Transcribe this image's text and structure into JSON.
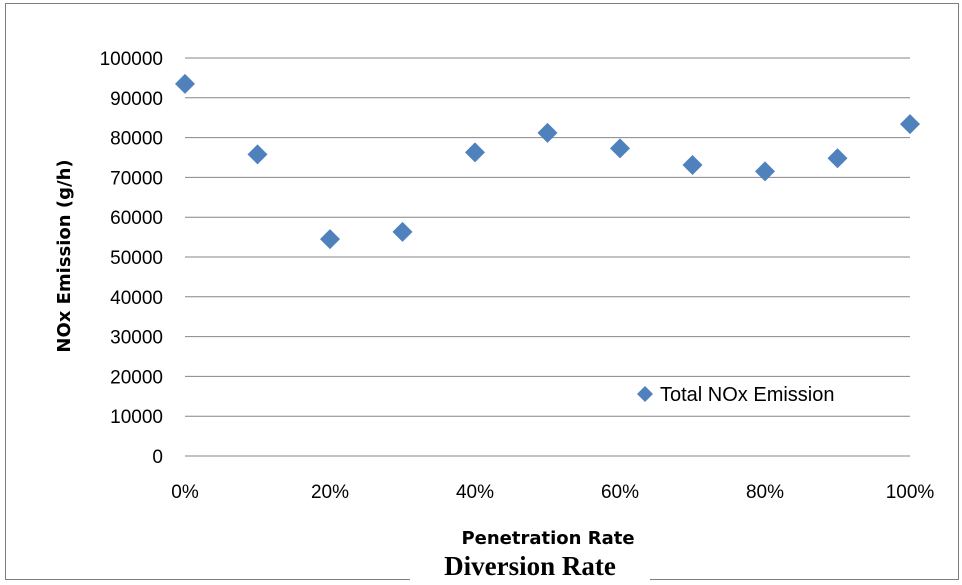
{
  "chart_data": {
    "type": "scatter",
    "x": [
      "0%",
      "10%",
      "20%",
      "30%",
      "40%",
      "50%",
      "60%",
      "70%",
      "80%",
      "90%",
      "100%"
    ],
    "x_values": [
      0,
      10,
      20,
      30,
      40,
      50,
      60,
      70,
      80,
      90,
      100
    ],
    "series": [
      {
        "name": "Total NOx Emission",
        "values": [
          93500,
          75800,
          54500,
          56300,
          76300,
          81200,
          77300,
          73100,
          71500,
          74800,
          83400
        ],
        "color": "#4f81bd"
      }
    ],
    "xticks": [
      "0%",
      "20%",
      "40%",
      "60%",
      "80%",
      "100%"
    ],
    "yticks": [
      "0",
      "10000",
      "20000",
      "30000",
      "40000",
      "50000",
      "60000",
      "70000",
      "80000",
      "90000",
      "100000"
    ],
    "xlabel": "Penetration Rate",
    "ylabel": "NOx Emission (g/h)",
    "xlim": [
      0,
      100
    ],
    "ylim": [
      0,
      100000
    ],
    "grid": "horizontal",
    "legend_position": "bottom-right"
  },
  "caption": "Diversion Rate"
}
